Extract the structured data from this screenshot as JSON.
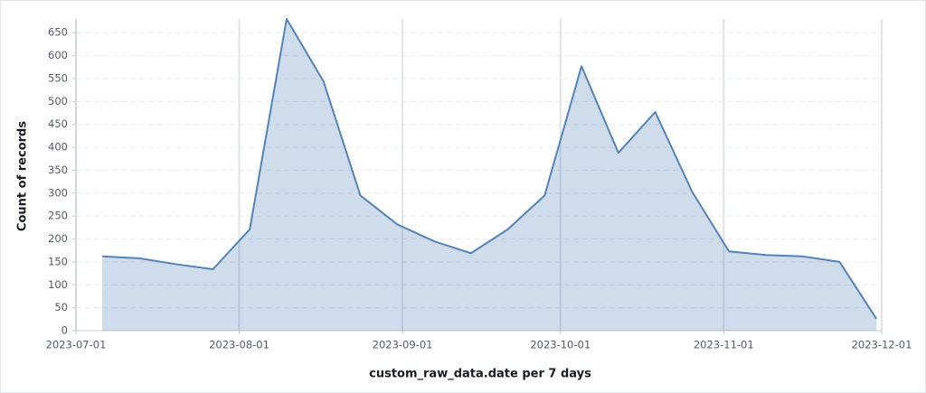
{
  "chart_data": {
    "type": "area",
    "x_label": "custom_raw_data.date per 7 days",
    "y_label": "Count of records",
    "x": [
      "2023-07-06",
      "2023-07-13",
      "2023-07-20",
      "2023-07-27",
      "2023-08-03",
      "2023-08-10",
      "2023-08-17",
      "2023-08-24",
      "2023-08-31",
      "2023-09-07",
      "2023-09-14",
      "2023-09-21",
      "2023-09-28",
      "2023-10-05",
      "2023-10-12",
      "2023-10-19",
      "2023-10-26",
      "2023-11-02",
      "2023-11-09",
      "2023-11-16",
      "2023-11-23",
      "2023-11-30"
    ],
    "series": [
      {
        "name": "Count of records",
        "color": "#5482b9",
        "values": [
          162,
          158,
          145,
          134,
          221,
          680,
          544,
          295,
          232,
          195,
          169,
          221,
          295,
          577,
          388,
          477,
          303,
          173,
          165,
          162,
          150,
          26
        ]
      }
    ],
    "xlim": [
      "2023-07-01",
      "2023-12-01"
    ],
    "xticks": [
      "2023-07-01",
      "2023-08-01",
      "2023-09-01",
      "2023-10-01",
      "2023-11-01",
      "2023-12-01"
    ],
    "ylim": [
      0,
      680
    ],
    "yticks": [
      0,
      50,
      100,
      150,
      200,
      250,
      300,
      350,
      400,
      450,
      500,
      550,
      600,
      650
    ],
    "grid": true
  }
}
